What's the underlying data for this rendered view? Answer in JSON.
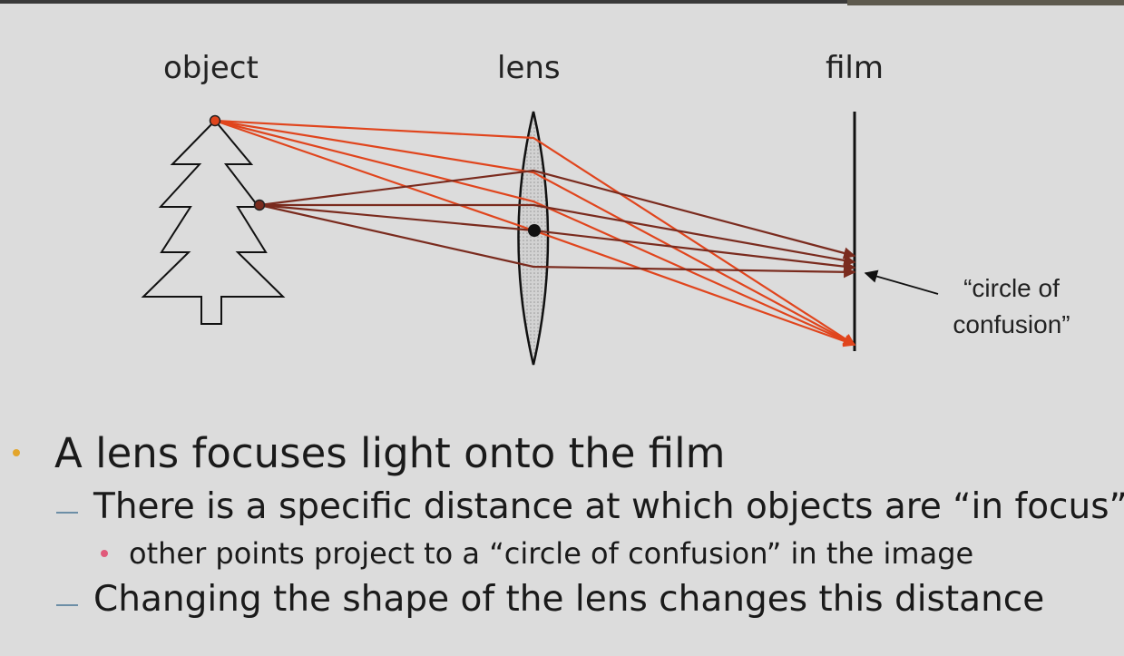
{
  "diagram": {
    "labels": {
      "object": "object",
      "lens": "lens",
      "film": "film"
    },
    "callout": {
      "line1": "“circle of",
      "line2": "confusion”"
    },
    "colors": {
      "ray_in_focus": "#e0451d",
      "ray_out_of_focus": "#7a2b1e",
      "lens_fill": "#c9c9c9",
      "outline": "#111111"
    }
  },
  "bullets": {
    "main": "A lens focuses light onto the film",
    "sub1": "There is a specific distance at which objects are “in focus”",
    "sub1_point": "other points project to a “circle of confusion” in the image",
    "sub2": "Changing the shape of the lens changes this distance"
  },
  "colors": {
    "bullet_main": "#e3a52b",
    "bullet_dash": "#6c8ea6",
    "bullet_dot": "#e05a7a"
  }
}
